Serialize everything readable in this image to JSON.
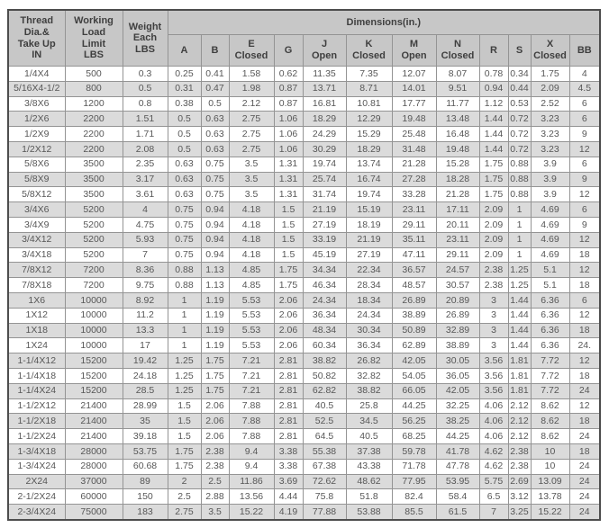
{
  "colors": {
    "header_bg": "#c7c7c7",
    "header_text": "#3f3f3f",
    "row_bg": "#ffffff",
    "row_alt_bg": "#dbdbdb",
    "cell_text": "#575757",
    "inner_border": "#949494",
    "outer_border": "#4d4d4d"
  },
  "header_display": {
    "thread": "Thread\nDia.&\nTake Up\nIN",
    "working_load_limit": "Working\nLoad\nLimit\nLBS",
    "weight": "Weight\nEach\nLBS",
    "dimensions": "Dimensions(in.)",
    "sub_columns": [
      "A",
      "B",
      "E\nClosed",
      "G",
      "J\nOpen",
      "K\nClosed",
      "M\nOpen",
      "N\nClosed",
      "R",
      "S",
      "X\nClosed",
      "BB"
    ]
  },
  "chart_data": {
    "type": "table",
    "title": "Dimensions(in.)",
    "column_group": {
      "label": "Dimensions(in.)",
      "spans_columns": [
        "A",
        "B",
        "E Closed",
        "G",
        "J Open",
        "K Closed",
        "M Open",
        "N Closed",
        "R",
        "S",
        "X Closed",
        "BB"
      ]
    },
    "columns": [
      "Thread Dia.& Take Up IN",
      "Working Load Limit LBS",
      "Weight Each LBS",
      "A",
      "B",
      "E Closed",
      "G",
      "J Open",
      "K Closed",
      "M Open",
      "N Closed",
      "R",
      "S",
      "X Closed",
      "BB"
    ],
    "rows": [
      [
        "1/4X4",
        "500",
        "0.3",
        "0.25",
        "0.41",
        "1.58",
        "0.62",
        "11.35",
        "7.35",
        "12.07",
        "8.07",
        "0.78",
        "0.34",
        "1.75",
        "4"
      ],
      [
        "5/16X4-1/2",
        "800",
        "0.5",
        "0.31",
        "0.47",
        "1.98",
        "0.87",
        "13.71",
        "8.71",
        "14.01",
        "9.51",
        "0.94",
        "0.44",
        "2.09",
        "4.5"
      ],
      [
        "3/8X6",
        "1200",
        "0.8",
        "0.38",
        "0.5",
        "2.12",
        "0.87",
        "16.81",
        "10.81",
        "17.77",
        "11.77",
        "1.12",
        "0.53",
        "2.52",
        "6"
      ],
      [
        "1/2X6",
        "2200",
        "1.51",
        "0.5",
        "0.63",
        "2.75",
        "1.06",
        "18.29",
        "12.29",
        "19.48",
        "13.48",
        "1.44",
        "0.72",
        "3.23",
        "6"
      ],
      [
        "1/2X9",
        "2200",
        "1.71",
        "0.5",
        "0.63",
        "2.75",
        "1.06",
        "24.29",
        "15.29",
        "25.48",
        "16.48",
        "1.44",
        "0.72",
        "3.23",
        "9"
      ],
      [
        "1/2X12",
        "2200",
        "2.08",
        "0.5",
        "0.63",
        "2.75",
        "1.06",
        "30.29",
        "18.29",
        "31.48",
        "19.48",
        "1.44",
        "0.72",
        "3.23",
        "12"
      ],
      [
        "5/8X6",
        "3500",
        "2.35",
        "0.63",
        "0.75",
        "3.5",
        "1.31",
        "19.74",
        "13.74",
        "21.28",
        "15.28",
        "1.75",
        "0.88",
        "3.9",
        "6"
      ],
      [
        "5/8X9",
        "3500",
        "3.17",
        "0.63",
        "0.75",
        "3.5",
        "1.31",
        "25.74",
        "16.74",
        "27.28",
        "18.28",
        "1.75",
        "0.88",
        "3.9",
        "9"
      ],
      [
        "5/8X12",
        "3500",
        "3.61",
        "0.63",
        "0.75",
        "3.5",
        "1.31",
        "31.74",
        "19.74",
        "33.28",
        "21.28",
        "1.75",
        "0.88",
        "3.9",
        "12"
      ],
      [
        "3/4X6",
        "5200",
        "4",
        "0.75",
        "0.94",
        "4.18",
        "1.5",
        "21.19",
        "15.19",
        "23.11",
        "17.11",
        "2.09",
        "1",
        "4.69",
        "6"
      ],
      [
        "3/4X9",
        "5200",
        "4.75",
        "0.75",
        "0.94",
        "4.18",
        "1.5",
        "27.19",
        "18.19",
        "29.11",
        "20.11",
        "2.09",
        "1",
        "4.69",
        "9"
      ],
      [
        "3/4X12",
        "5200",
        "5.93",
        "0.75",
        "0.94",
        "4.18",
        "1.5",
        "33.19",
        "21.19",
        "35.11",
        "23.11",
        "2.09",
        "1",
        "4.69",
        "12"
      ],
      [
        "3/4X18",
        "5200",
        "7",
        "0.75",
        "0.94",
        "4.18",
        "1.5",
        "45.19",
        "27.19",
        "47.11",
        "29.11",
        "2.09",
        "1",
        "4.69",
        "18"
      ],
      [
        "7/8X12",
        "7200",
        "8.36",
        "0.88",
        "1.13",
        "4.85",
        "1.75",
        "34.34",
        "22.34",
        "36.57",
        "24.57",
        "2.38",
        "1.25",
        "5.1",
        "12"
      ],
      [
        "7/8X18",
        "7200",
        "9.75",
        "0.88",
        "1.13",
        "4.85",
        "1.75",
        "46.34",
        "28.34",
        "48.57",
        "30.57",
        "2.38",
        "1.25",
        "5.1",
        "18"
      ],
      [
        "1X6",
        "10000",
        "8.92",
        "1",
        "1.19",
        "5.53",
        "2.06",
        "24.34",
        "18.34",
        "26.89",
        "20.89",
        "3",
        "1.44",
        "6.36",
        "6"
      ],
      [
        "1X12",
        "10000",
        "11.2",
        "1",
        "1.19",
        "5.53",
        "2.06",
        "36.34",
        "24.34",
        "38.89",
        "26.89",
        "3",
        "1.44",
        "6.36",
        "12"
      ],
      [
        "1X18",
        "10000",
        "13.3",
        "1",
        "1.19",
        "5.53",
        "2.06",
        "48.34",
        "30.34",
        "50.89",
        "32.89",
        "3",
        "1.44",
        "6.36",
        "18"
      ],
      [
        "1X24",
        "10000",
        "17",
        "1",
        "1.19",
        "5.53",
        "2.06",
        "60.34",
        "36.34",
        "62.89",
        "38.89",
        "3",
        "1.44",
        "6.36",
        "24."
      ],
      [
        "1-1/4X12",
        "15200",
        "19.42",
        "1.25",
        "1.75",
        "7.21",
        "2.81",
        "38.82",
        "26.82",
        "42.05",
        "30.05",
        "3.56",
        "1.81",
        "7.72",
        "12"
      ],
      [
        "1-1/4X18",
        "15200",
        "24.18",
        "1.25",
        "1.75",
        "7.21",
        "2.81",
        "50.82",
        "32.82",
        "54.05",
        "36.05",
        "3.56",
        "1.81",
        "7.72",
        "18"
      ],
      [
        "1-1/4X24",
        "15200",
        "28.5",
        "1.25",
        "1.75",
        "7.21",
        "2.81",
        "62.82",
        "38.82",
        "66.05",
        "42.05",
        "3.56",
        "1.81",
        "7.72",
        "24"
      ],
      [
        "1-1/2X12",
        "21400",
        "28.99",
        "1.5",
        "2.06",
        "7.88",
        "2.81",
        "40.5",
        "25.8",
        "44.25",
        "32.25",
        "4.06",
        "2.12",
        "8.62",
        "12"
      ],
      [
        "1-1/2X18",
        "21400",
        "35",
        "1.5",
        "2.06",
        "7.88",
        "2.81",
        "52.5",
        "34.5",
        "56.25",
        "38.25",
        "4.06",
        "2.12",
        "8.62",
        "18"
      ],
      [
        "1-1/2X24",
        "21400",
        "39.18",
        "1.5",
        "2.06",
        "7.88",
        "2.81",
        "64.5",
        "40.5",
        "68.25",
        "44.25",
        "4.06",
        "2.12",
        "8.62",
        "24"
      ],
      [
        "1-3/4X18",
        "28000",
        "53.75",
        "1.75",
        "2.38",
        "9.4",
        "3.38",
        "55.38",
        "37.38",
        "59.78",
        "41.78",
        "4.62",
        "2.38",
        "10",
        "18"
      ],
      [
        "1-3/4X24",
        "28000",
        "60.68",
        "1.75",
        "2.38",
        "9.4",
        "3.38",
        "67.38",
        "43.38",
        "71.78",
        "47.78",
        "4.62",
        "2.38",
        "10",
        "24"
      ],
      [
        "2X24",
        "37000",
        "89",
        "2",
        "2.5",
        "11.86",
        "3.69",
        "72.62",
        "48.62",
        "77.95",
        "53.95",
        "5.75",
        "2.69",
        "13.09",
        "24"
      ],
      [
        "2-1/2X24",
        "60000",
        "150",
        "2.5",
        "2.88",
        "13.56",
        "4.44",
        "75.8",
        "51.8",
        "82.4",
        "58.4",
        "6.5",
        "3.12",
        "13.78",
        "24"
      ],
      [
        "2-3/4X24",
        "75000",
        "183",
        "2.75",
        "3.5",
        "15.22",
        "4.19",
        "77.88",
        "53.88",
        "85.5",
        "61.5",
        "7",
        "3.25",
        "15.22",
        "24"
      ]
    ]
  }
}
